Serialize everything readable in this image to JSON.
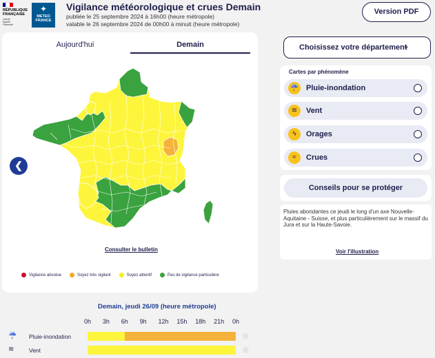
{
  "header": {
    "republique": [
      "RÉPUBLIQUE",
      "FRANÇAISE"
    ],
    "motto": [
      "Liberté",
      "Égalité",
      "Fraternité"
    ],
    "meteo_logo": [
      "METEO",
      "FRANCE"
    ],
    "title": "Vigilance météorologique et crues Demain",
    "published": "publiée le 25 septembre 2024 à 16h00 (heure métropole)",
    "valid": "valable le 26 septembre 2024 de 00h00 à minuit (heure métropole)",
    "pdf_button": "Version PDF",
    "flag_colors": [
      "#000091",
      "#ffffff",
      "#e1000f"
    ]
  },
  "tabs": [
    {
      "label": "Aujourd'hui",
      "active": false
    },
    {
      "label": "Demain",
      "active": true
    }
  ],
  "map": {
    "prev_icon": "chevron-left-icon",
    "bulletin_link": "Consulter le bulletin",
    "colors": {
      "green": "#3aa23f",
      "yellow": "#fdf53b",
      "orange": "#f5b23a",
      "border": "#ffffff"
    },
    "legend": [
      {
        "label": "Vigilance absolue",
        "color": "#c8102e"
      },
      {
        "label": "Soyez très vigilant",
        "color": "#f5a623"
      },
      {
        "label": "Soyez attentif",
        "color": "#f6ee1a"
      },
      {
        "label": "Pas de vigilance particulière",
        "color": "#3aa23f"
      }
    ]
  },
  "department": {
    "label": "Choisissez votre département",
    "icon": "chevron-down-icon"
  },
  "phenomena": {
    "title": "Cartes par phénomène",
    "items": [
      {
        "label": "Pluie-inondation",
        "icon": "rain-flood-icon",
        "glyph": "☔"
      },
      {
        "label": "Vent",
        "icon": "wind-icon",
        "glyph": "≋"
      },
      {
        "label": "Orages",
        "icon": "thunderstorm-icon",
        "glyph": "ϟ"
      },
      {
        "label": "Crues",
        "icon": "flood-icon",
        "glyph": "≈"
      }
    ]
  },
  "conseils": {
    "label": "Conseils pour se protéger"
  },
  "summary": {
    "text": "Pluies abondantes ce jeudi le long d'un axe Nouvelle-Aquitaine - Suisse, et plus particulièrement sur le massif du Jura et sur la Haute-Savoie.",
    "link": "Voir l'illustration"
  },
  "timeline": {
    "title": "Demain, jeudi 26/09 (heure métropole)",
    "hours": [
      "0h",
      "3h",
      "6h",
      "9h",
      "12h",
      "15h",
      "18h",
      "21h",
      "0h"
    ],
    "rows": [
      {
        "label": "Pluie-inondation",
        "icon": "rain-flood-icon",
        "glyph": "☔",
        "segments": [
          {
            "hours": 6,
            "color": "#fdf53b"
          },
          {
            "hours": 18,
            "color": "#f5b23a"
          }
        ]
      },
      {
        "label": "Vent",
        "icon": "wind-icon",
        "glyph": "≋",
        "segments": [
          {
            "hours": 24,
            "color": "#fdf53b"
          }
        ]
      }
    ],
    "hidden_icon": "eye-slash-icon"
  }
}
